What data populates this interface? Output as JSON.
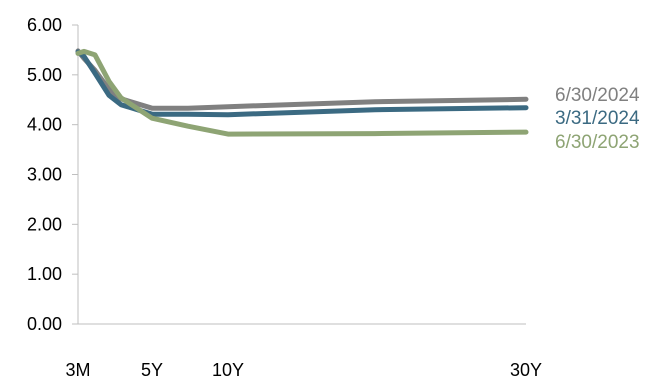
{
  "chart_data": {
    "type": "line",
    "x": [
      0.25,
      0.5,
      1,
      2,
      3,
      5,
      7,
      10,
      20,
      30
    ],
    "x_tick_labels": [
      {
        "label": "3M",
        "x": 0.25
      },
      {
        "label": "5Y",
        "x": 5
      },
      {
        "label": "10Y",
        "x": 10
      },
      {
        "label": "30Y",
        "x": 30
      }
    ],
    "y_tick_labels": [
      "0.00",
      "1.00",
      "2.00",
      "3.00",
      "4.00",
      "5.00",
      "6.00"
    ],
    "ylim": [
      0,
      6
    ],
    "xlim": [
      0.25,
      30
    ],
    "grid": false,
    "legend_placement": "right",
    "series": [
      {
        "name": "6/30/2024",
        "color": "#808080",
        "values": [
          5.48,
          5.33,
          5.09,
          4.71,
          4.52,
          4.33,
          4.33,
          4.36,
          4.46,
          4.51
        ]
      },
      {
        "name": "3/31/2024",
        "color": "#3b6a82",
        "values": [
          5.46,
          5.37,
          5.03,
          4.59,
          4.4,
          4.21,
          4.21,
          4.2,
          4.3,
          4.34
        ]
      },
      {
        "name": "6/30/2023",
        "color": "#8ea474",
        "values": [
          5.43,
          5.47,
          5.4,
          4.87,
          4.54,
          4.13,
          3.97,
          3.81,
          3.82,
          3.85
        ]
      }
    ]
  }
}
